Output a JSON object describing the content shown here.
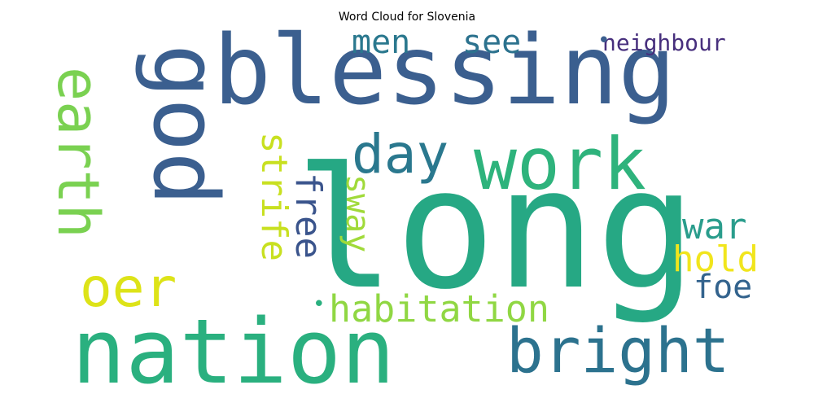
{
  "chart_data": {
    "type": "word_cloud",
    "title": "Word Cloud for Slovenia",
    "words": [
      {
        "text": "long",
        "weight": 1.0,
        "color": "#26a884",
        "orientation": "horizontal"
      },
      {
        "text": "blessing",
        "weight": 0.72,
        "color": "#3b5f8f",
        "orientation": "horizontal"
      },
      {
        "text": "nation",
        "weight": 0.66,
        "color": "#2ab07f",
        "orientation": "horizontal"
      },
      {
        "text": "god",
        "weight": 0.62,
        "color": "#3b5f8f",
        "orientation": "vertical"
      },
      {
        "text": "work",
        "weight": 0.52,
        "color": "#2eb37c",
        "orientation": "horizontal"
      },
      {
        "text": "bright",
        "weight": 0.45,
        "color": "#2c728e",
        "orientation": "horizontal"
      },
      {
        "text": "earth",
        "weight": 0.42,
        "color": "#7ad151",
        "orientation": "vertical"
      },
      {
        "text": "day",
        "weight": 0.38,
        "color": "#2a788e",
        "orientation": "horizontal"
      },
      {
        "text": "oer",
        "weight": 0.38,
        "color": "#dde318",
        "orientation": "horizontal"
      },
      {
        "text": "habitation",
        "weight": 0.25,
        "color": "#90d743",
        "orientation": "horizontal"
      },
      {
        "text": "strife",
        "weight": 0.24,
        "color": "#c8e020",
        "orientation": "vertical"
      },
      {
        "text": "war",
        "weight": 0.24,
        "color": "#2a9d8c",
        "orientation": "horizontal"
      },
      {
        "text": "free",
        "weight": 0.24,
        "color": "#3a548c",
        "orientation": "vertical"
      },
      {
        "text": "hold",
        "weight": 0.24,
        "color": "#f1e51d",
        "orientation": "horizontal"
      },
      {
        "text": "men",
        "weight": 0.22,
        "color": "#2a788e",
        "orientation": "horizontal"
      },
      {
        "text": "see",
        "weight": 0.22,
        "color": "#2c728e",
        "orientation": "horizontal"
      },
      {
        "text": "sway",
        "weight": 0.22,
        "color": "#a0da39",
        "orientation": "vertical"
      },
      {
        "text": "foe",
        "weight": 0.22,
        "color": "#33638d",
        "orientation": "horizontal"
      },
      {
        "text": "neighbour",
        "weight": 0.16,
        "color": "#472f7d",
        "orientation": "horizontal"
      },
      {
        "text": "•",
        "weight": 0.14,
        "color": "#3b5f8f",
        "orientation": "horizontal"
      },
      {
        "text": "•",
        "weight": 0.14,
        "color": "#2ab07f",
        "orientation": "horizontal"
      }
    ]
  }
}
